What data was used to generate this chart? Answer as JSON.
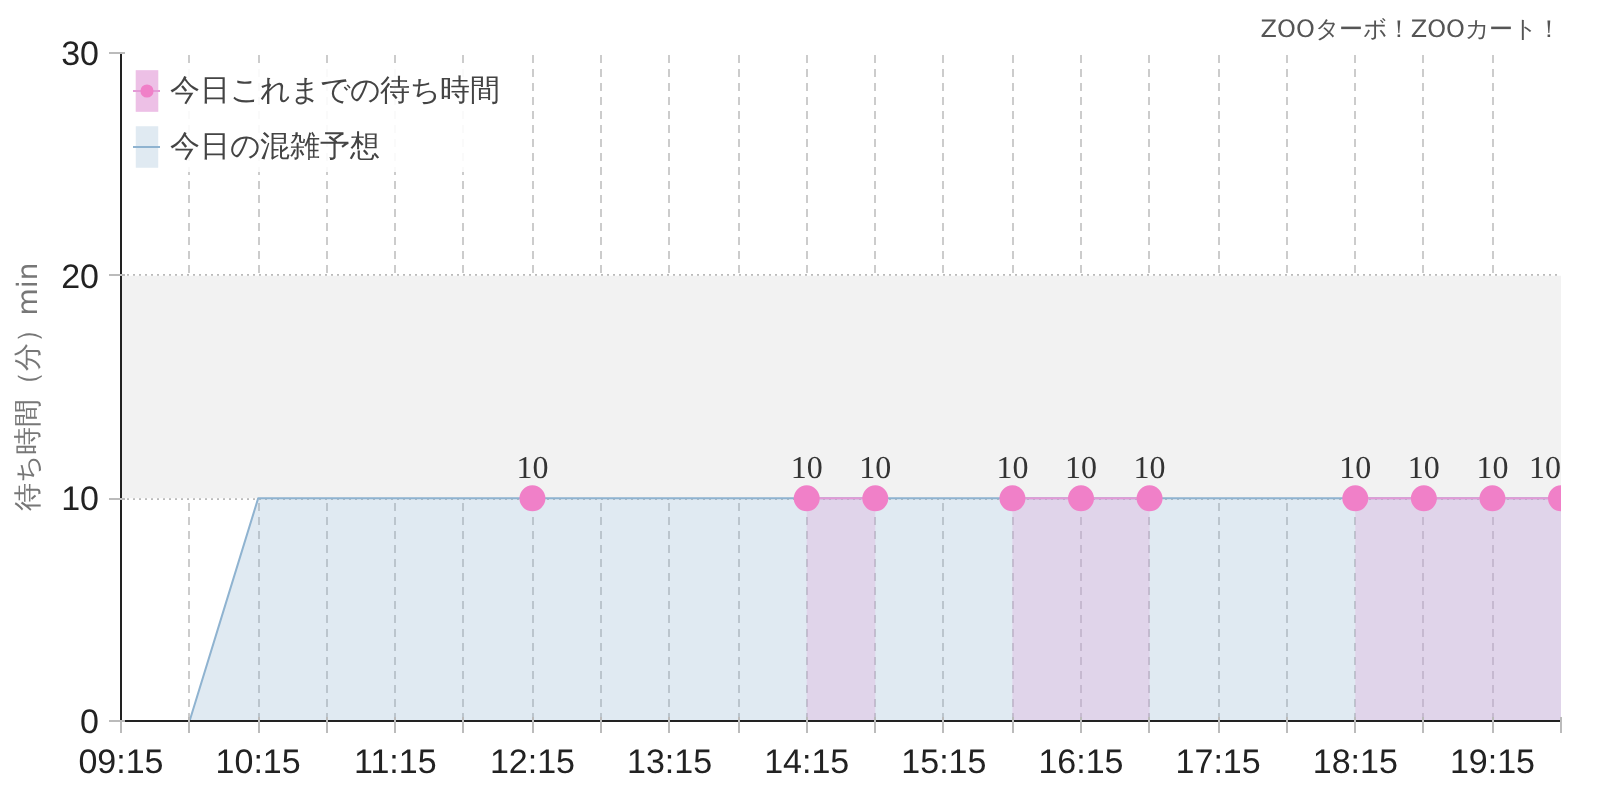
{
  "chart_data": {
    "type": "area",
    "ylabel": "待ち時間（分）min",
    "annotations": [
      "ZOOターボ！ZOOカート！"
    ],
    "xlim": [
      9.25,
      19.75
    ],
    "ylim": [
      0,
      30
    ],
    "yticks": [
      0,
      10,
      20,
      30
    ],
    "xticks": [
      {
        "value": 9.25,
        "label": "09:15"
      },
      {
        "value": 9.75,
        "label": null
      },
      {
        "value": 10.25,
        "label": "10:15"
      },
      {
        "value": 10.75,
        "label": null
      },
      {
        "value": 11.25,
        "label": "11:15"
      },
      {
        "value": 11.75,
        "label": null
      },
      {
        "value": 12.25,
        "label": "12:15"
      },
      {
        "value": 12.75,
        "label": null
      },
      {
        "value": 13.25,
        "label": "13:15"
      },
      {
        "value": 13.75,
        "label": null
      },
      {
        "value": 14.25,
        "label": "14:15"
      },
      {
        "value": 14.75,
        "label": null
      },
      {
        "value": 15.25,
        "label": "15:15"
      },
      {
        "value": 15.75,
        "label": null
      },
      {
        "value": 16.25,
        "label": "16:15"
      },
      {
        "value": 16.75,
        "label": null
      },
      {
        "value": 17.25,
        "label": "17:15"
      },
      {
        "value": 17.75,
        "label": null
      },
      {
        "value": 18.25,
        "label": "18:15"
      },
      {
        "value": 18.75,
        "label": null
      },
      {
        "value": 19.25,
        "label": "19:15"
      },
      {
        "value": 19.75,
        "label": null
      }
    ],
    "bands": [
      {
        "axis": "y",
        "from": 10,
        "to": 20,
        "color": "#f2f2f2"
      }
    ],
    "grid": true,
    "legend": "top left",
    "series": [
      {
        "type": "scatter",
        "color": "#f080c8",
        "marker": "circle",
        "data_labels": true,
        "x": [
          12.25,
          14.25,
          14.75,
          15.75,
          16.25,
          16.75,
          18.25,
          18.75,
          19.25,
          19.75
        ],
        "values": [
          10,
          10,
          10,
          10,
          10,
          10,
          10,
          10,
          10,
          10
        ]
      },
      {
        "name": "今日これまでの待ち時間",
        "color": "#e49ad6",
        "x": [
          14.25,
          14.75,
          15.25,
          15.75,
          16.25,
          16.75,
          17.25,
          17.75,
          18.25,
          18.75,
          19.25,
          19.75
        ],
        "values": [
          10,
          10,
          null,
          10,
          10,
          10,
          null,
          null,
          10,
          10,
          10,
          10
        ]
      },
      {
        "name": "今日の混雑予想",
        "color": "#8fb3d0",
        "x": [
          9.25,
          9.5,
          9.75,
          10.0,
          10.25,
          10.75,
          11.25,
          11.75,
          12.25,
          12.75,
          13.25,
          13.75,
          14.25,
          14.75,
          15.25,
          15.75,
          16.25,
          16.75,
          17.25,
          17.75,
          18.25,
          18.75,
          19.25,
          19.75
        ],
        "values": [
          0,
          0,
          0,
          5,
          10,
          10,
          10,
          10,
          10,
          10,
          10,
          10,
          10,
          10,
          10,
          10,
          10,
          10,
          10,
          10,
          10,
          10,
          10,
          10
        ]
      }
    ]
  }
}
